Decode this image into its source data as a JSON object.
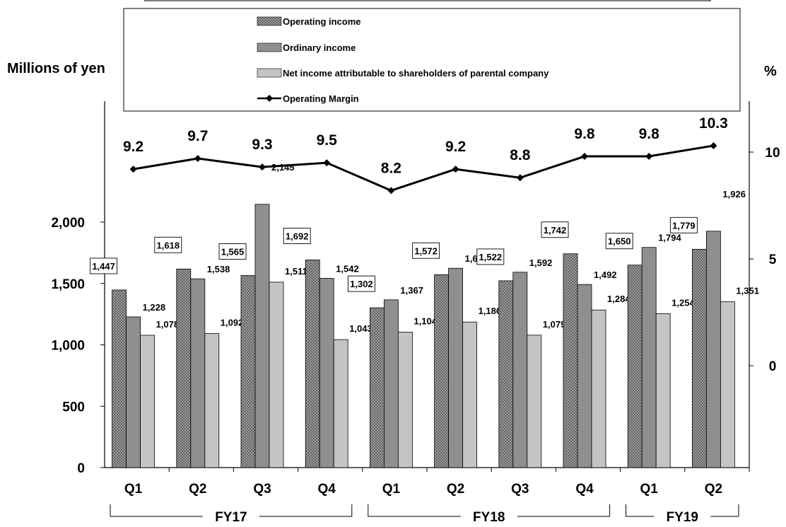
{
  "chart_data": {
    "type": "bar",
    "y_axis_left_label": "Millions of yen",
    "y_axis_right_label": "%",
    "y_left_ticks": [
      "0",
      "500",
      "1,000",
      "1,500",
      "2,000"
    ],
    "y_right_ticks": [
      "0",
      "5",
      "10"
    ],
    "ylim_left": [
      0,
      2500
    ],
    "ylim_right": [
      -5,
      12
    ],
    "categories": [
      "Q1",
      "Q2",
      "Q3",
      "Q4",
      "Q1",
      "Q2",
      "Q3",
      "Q4",
      "Q1",
      "Q2"
    ],
    "groups": [
      {
        "label": "FY17",
        "from": 0,
        "to": 3
      },
      {
        "label": "FY18",
        "from": 4,
        "to": 7
      },
      {
        "label": "FY19",
        "from": 8,
        "to": 9
      }
    ],
    "series": [
      {
        "name": "Operating income",
        "kind": "bar",
        "pattern": "crosshatch",
        "color": "#8c8c8c",
        "values": [
          1447,
          1618,
          1565,
          1692,
          1302,
          1572,
          1522,
          1742,
          1650,
          1779
        ],
        "labels": [
          "1,447",
          "1,618",
          "1,565",
          "1,692",
          "1,302",
          "1,572",
          "1,522",
          "1,742",
          "1,650",
          "1,779"
        ]
      },
      {
        "name": "Ordinary income",
        "kind": "bar",
        "color": "#8f8f8f",
        "values": [
          1228,
          1538,
          2145,
          1542,
          1367,
          1624,
          1592,
          1492,
          1794,
          1926
        ],
        "labels": [
          "1,228",
          "1,538",
          "2,145",
          "1,542",
          "1,367",
          "1,624",
          "1,592",
          "1,492",
          "1,794",
          "1,926"
        ]
      },
      {
        "name": "Net income attributable to shareholders of parental company",
        "kind": "bar",
        "color": "#c4c4c4",
        "values": [
          1078,
          1092,
          1511,
          1043,
          1104,
          1186,
          1079,
          1284,
          1254,
          1351
        ],
        "labels": [
          "1,078",
          "1,092",
          "1,511",
          "1,043",
          "1,104",
          "1,186",
          "1,079",
          "1,284",
          "1,254",
          "1,351"
        ]
      },
      {
        "name": "Operating Margin",
        "kind": "line",
        "axis": "right",
        "color": "#000000",
        "values": [
          9.2,
          9.7,
          9.3,
          9.5,
          8.2,
          9.2,
          8.8,
          9.8,
          9.8,
          10.3
        ],
        "labels": [
          "9.2",
          "9.7",
          "9.3",
          "9.5",
          "8.2",
          "9.2",
          "8.8",
          "9.8",
          "9.8",
          "10.3"
        ]
      }
    ],
    "legend_position": "top-center",
    "grid": false
  }
}
